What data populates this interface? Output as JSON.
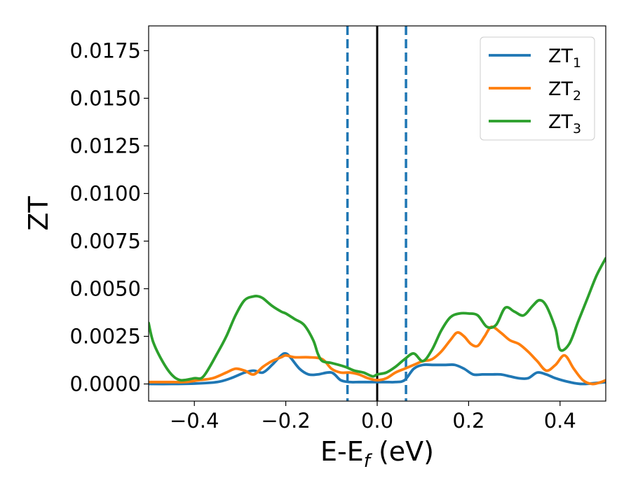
{
  "chart_data": {
    "type": "line",
    "xlabel": {
      "main": "E-E",
      "sub": "f",
      "suffix": " (eV)"
    },
    "ylabel": "ZT",
    "xlim": [
      -0.5,
      0.5
    ],
    "ylim": [
      -0.0009,
      0.0188
    ],
    "xticks": [
      {
        "value": -0.4,
        "label": "−0.4"
      },
      {
        "value": -0.2,
        "label": "−0.2"
      },
      {
        "value": 0.0,
        "label": "0.0"
      },
      {
        "value": 0.2,
        "label": "0.2"
      },
      {
        "value": 0.4,
        "label": "0.4"
      }
    ],
    "yticks": [
      {
        "value": 0.0,
        "label": "0.0000"
      },
      {
        "value": 0.0025,
        "label": "0.0025"
      },
      {
        "value": 0.005,
        "label": "0.0050"
      },
      {
        "value": 0.0075,
        "label": "0.0075"
      },
      {
        "value": 0.01,
        "label": "0.0100"
      },
      {
        "value": 0.0125,
        "label": "0.0125"
      },
      {
        "value": 0.015,
        "label": "0.0150"
      },
      {
        "value": 0.0175,
        "label": "0.0175"
      }
    ],
    "grid": false,
    "legend_position": "top-right",
    "vlines": [
      {
        "x": -0.065,
        "style": "dashed",
        "color": "#1f77b4"
      },
      {
        "x": 0.0,
        "style": "solid",
        "color": "#000000"
      },
      {
        "x": 0.063,
        "style": "dashed",
        "color": "#1f77b4"
      }
    ],
    "series": [
      {
        "name": "ZT",
        "sub": "1",
        "color": "#1f77b4",
        "x": [
          -0.5,
          -0.45,
          -0.4,
          -0.35,
          -0.32,
          -0.29,
          -0.27,
          -0.25,
          -0.23,
          -0.21,
          -0.2,
          -0.19,
          -0.17,
          -0.15,
          -0.13,
          -0.1,
          -0.08,
          -0.06,
          -0.04,
          -0.02,
          0.0,
          0.02,
          0.04,
          0.06,
          0.08,
          0.1,
          0.12,
          0.15,
          0.17,
          0.19,
          0.21,
          0.23,
          0.25,
          0.27,
          0.29,
          0.31,
          0.33,
          0.35,
          0.37,
          0.39,
          0.42,
          0.45,
          0.5
        ],
        "y": [
          0.0,
          0.0,
          2e-05,
          0.0001,
          0.0003,
          0.0006,
          0.0007,
          0.0006,
          0.001,
          0.0015,
          0.0016,
          0.0014,
          0.0008,
          0.0005,
          0.0005,
          0.0006,
          0.0002,
          0.0001,
          0.0001,
          0.0001,
          0.0001,
          0.0001,
          0.0001,
          0.0002,
          0.0008,
          0.001,
          0.001,
          0.001,
          0.001,
          0.0008,
          0.0005,
          0.0005,
          0.0005,
          0.0005,
          0.0004,
          0.0003,
          0.0003,
          0.0006,
          0.0005,
          0.0003,
          0.0001,
          0.0,
          0.0001
        ]
      },
      {
        "name": "ZT",
        "sub": "2",
        "color": "#ff7f0e",
        "x": [
          -0.5,
          -0.45,
          -0.42,
          -0.39,
          -0.36,
          -0.33,
          -0.31,
          -0.29,
          -0.27,
          -0.25,
          -0.23,
          -0.21,
          -0.2,
          -0.18,
          -0.15,
          -0.12,
          -0.1,
          -0.08,
          -0.06,
          -0.04,
          -0.02,
          0.0,
          0.02,
          0.04,
          0.06,
          0.08,
          0.1,
          0.12,
          0.14,
          0.16,
          0.175,
          0.19,
          0.205,
          0.22,
          0.235,
          0.25,
          0.27,
          0.29,
          0.31,
          0.33,
          0.35,
          0.37,
          0.39,
          0.41,
          0.43,
          0.45,
          0.47,
          0.49,
          0.5
        ],
        "y": [
          0.0001,
          0.0001,
          0.0001,
          0.0002,
          0.0003,
          0.0006,
          0.0008,
          0.0007,
          0.0005,
          0.0009,
          0.0012,
          0.0014,
          0.0015,
          0.0014,
          0.0014,
          0.0013,
          0.0008,
          0.0006,
          0.0006,
          0.0005,
          0.0003,
          0.0002,
          0.0003,
          0.0006,
          0.0008,
          0.001,
          0.0012,
          0.0013,
          0.0017,
          0.0023,
          0.0027,
          0.0025,
          0.0021,
          0.002,
          0.0025,
          0.003,
          0.0027,
          0.0023,
          0.0021,
          0.0017,
          0.0012,
          0.0007,
          0.001,
          0.0015,
          0.0008,
          0.0002,
          0.0,
          0.0001,
          0.0002
        ]
      },
      {
        "name": "ZT",
        "sub": "3",
        "color": "#2ca02c",
        "x": [
          -0.5,
          -0.49,
          -0.47,
          -0.45,
          -0.43,
          -0.4,
          -0.38,
          -0.35,
          -0.33,
          -0.31,
          -0.29,
          -0.27,
          -0.26,
          -0.25,
          -0.23,
          -0.21,
          -0.2,
          -0.18,
          -0.16,
          -0.14,
          -0.13,
          -0.12,
          -0.1,
          -0.07,
          -0.05,
          -0.03,
          -0.01,
          0.0,
          0.02,
          0.04,
          0.06,
          0.08,
          0.1,
          0.12,
          0.14,
          0.16,
          0.18,
          0.2,
          0.22,
          0.24,
          0.26,
          0.28,
          0.3,
          0.32,
          0.34,
          0.355,
          0.37,
          0.39,
          0.4,
          0.42,
          0.44,
          0.46,
          0.48,
          0.5
        ],
        "y": [
          0.0032,
          0.0022,
          0.0012,
          0.0005,
          0.0002,
          0.0003,
          0.0004,
          0.0016,
          0.0025,
          0.0036,
          0.0044,
          0.0046,
          0.0046,
          0.0045,
          0.0041,
          0.0038,
          0.0037,
          0.0034,
          0.0031,
          0.0023,
          0.0016,
          0.0012,
          0.0011,
          0.0009,
          0.0007,
          0.0006,
          0.0004,
          0.0005,
          0.0006,
          0.0009,
          0.0013,
          0.0016,
          0.0012,
          0.0018,
          0.0028,
          0.0035,
          0.0037,
          0.0037,
          0.0036,
          0.003,
          0.0031,
          0.004,
          0.0038,
          0.0036,
          0.0041,
          0.0044,
          0.0041,
          0.0029,
          0.0018,
          0.0021,
          0.0033,
          0.0045,
          0.0057,
          0.0066
        ]
      }
    ]
  }
}
